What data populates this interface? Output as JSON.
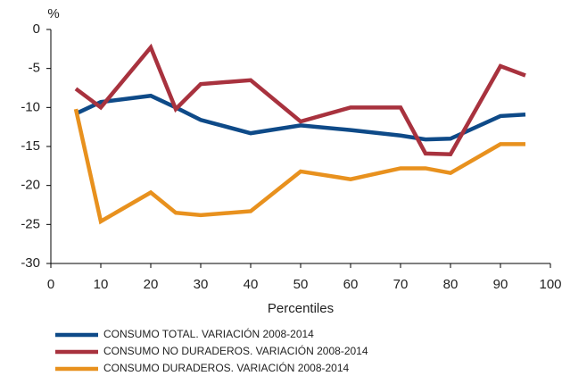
{
  "chart_data": {
    "type": "line",
    "y_label": "%",
    "x_label": "Percentiles",
    "x": [
      5,
      10,
      20,
      25,
      30,
      40,
      50,
      60,
      70,
      75,
      80,
      90,
      95
    ],
    "series": [
      {
        "name": "CONSUMO TOTAL. VARIACIÓN 2008-2014",
        "color": "#0e4a88",
        "values": [
          -10.8,
          -9.3,
          -8.5,
          -10,
          -11.6,
          -13.3,
          -12.3,
          -12.9,
          -13.6,
          -14.1,
          -14,
          -11.1,
          -10.9
        ]
      },
      {
        "name": "CONSUMO NO DURADEROS. VARIACIÓN 2008-2014",
        "color": "#a8323e",
        "values": [
          -7.6,
          -10,
          -2.3,
          -10.2,
          -7,
          -6.5,
          -11.8,
          -10,
          -10,
          -15.9,
          -16,
          -4.7,
          -5.9
        ]
      },
      {
        "name": "CONSUMO DURADEROS. VARIACIÓN 2008-2014",
        "color": "#e8911e",
        "values": [
          -10.2,
          -24.6,
          -20.9,
          -23.5,
          -23.8,
          -23.3,
          -18.2,
          -19.2,
          -17.8,
          -17.8,
          -18.4,
          -14.7,
          -14.7
        ]
      }
    ],
    "xlim": [
      0,
      100
    ],
    "xticks": [
      0,
      10,
      20,
      30,
      40,
      50,
      60,
      70,
      80,
      90,
      100
    ],
    "ylim": [
      -30,
      0
    ],
    "yticks": [
      0,
      -5,
      -10,
      -15,
      -20,
      -25,
      -30
    ]
  }
}
